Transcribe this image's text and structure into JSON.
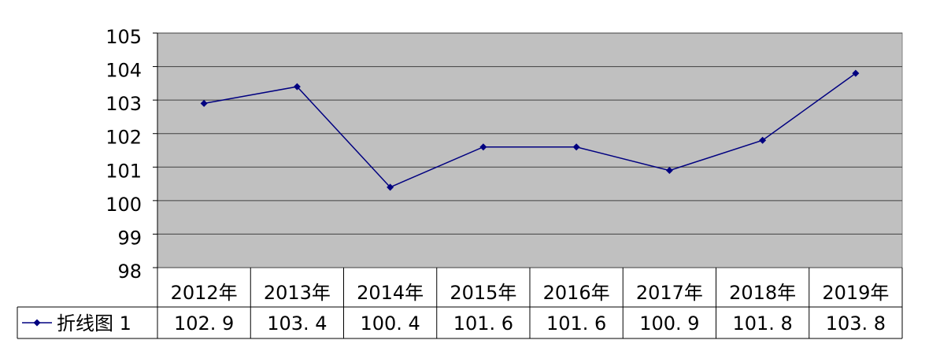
{
  "chart_data": {
    "type": "line",
    "categories": [
      "2012年",
      "2013年",
      "2014年",
      "2015年",
      "2016年",
      "2017年",
      "2018年",
      "2019年"
    ],
    "series": [
      {
        "name": "折线图 1",
        "color": "#000080",
        "values": [
          102.9,
          103.4,
          100.4,
          101.6,
          101.6,
          100.9,
          101.8,
          103.8
        ],
        "value_labels": [
          "102. 9",
          "103. 4",
          "100. 4",
          "101. 6",
          "101. 6",
          "100. 9",
          "101. 8",
          "103. 8"
        ]
      }
    ],
    "ylim": [
      98,
      105
    ],
    "yticks": [
      98,
      99,
      100,
      101,
      102,
      103,
      104,
      105
    ],
    "grid": true,
    "plot_background": "#c0c0c0"
  }
}
